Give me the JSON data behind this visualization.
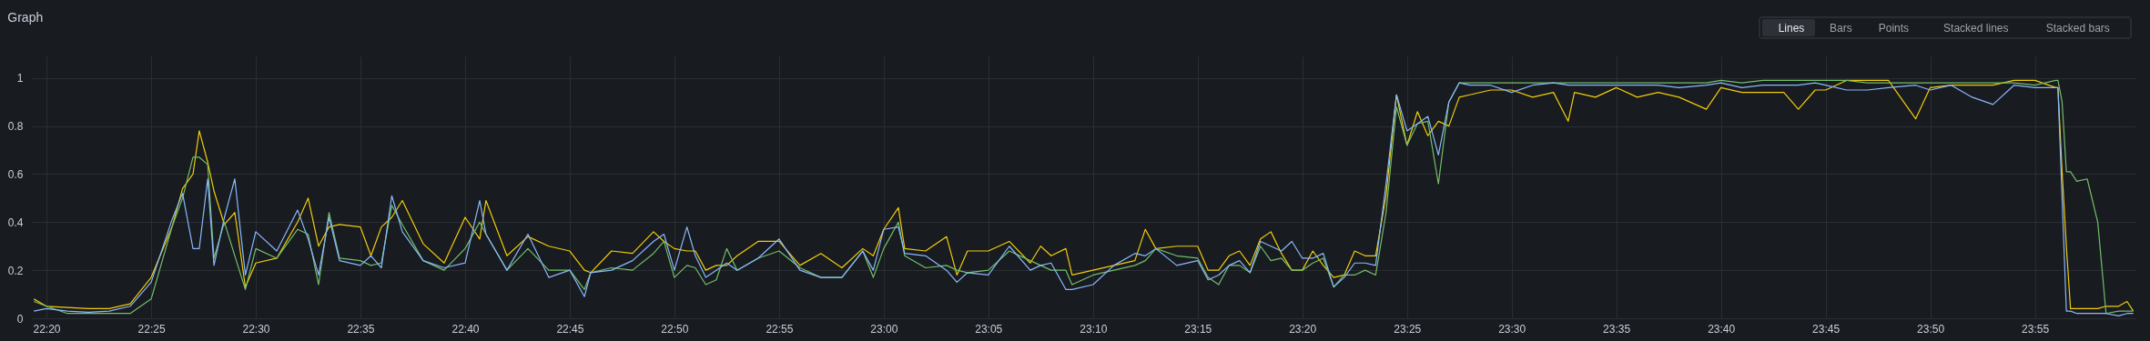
{
  "chart_data": {
    "type": "line",
    "title": "Graph",
    "annotations": [
      "Lines",
      "Bars",
      "Points",
      "Stacked lines",
      "Stacked bars"
    ],
    "x": [
      22.3233,
      22.3333,
      22.35,
      22.3667,
      22.3833,
      22.4,
      22.4167,
      22.4333,
      22.4417,
      22.45,
      22.455,
      22.4617,
      22.4667,
      22.475,
      22.4833,
      22.4917,
      22.5,
      22.5167,
      22.5333,
      22.5417,
      22.55,
      22.5583,
      22.5667,
      22.5833,
      22.5917,
      22.6,
      22.6083,
      22.6167,
      22.6333,
      22.65,
      22.6667,
      22.6783,
      22.6833,
      22.7,
      22.7167,
      22.7333,
      22.75,
      22.7617,
      22.7667,
      22.7833,
      22.8,
      22.8167,
      22.825,
      22.8333,
      22.8433,
      22.85,
      22.8583,
      22.8667,
      22.875,
      22.8833,
      22.9,
      22.9167,
      22.9333,
      22.95,
      22.9667,
      22.9833,
      22.9917,
      23,
      23.0117,
      23.0167,
      23.0333,
      23.05,
      23.0583,
      23.0667,
      23.0833,
      23.1,
      23.1167,
      23.125,
      23.1333,
      23.145,
      23.15,
      23.1667,
      23.1833,
      23.2,
      23.2083,
      23.2167,
      23.2333,
      23.25,
      23.2583,
      23.2667,
      23.275,
      23.2833,
      23.2917,
      23.3,
      23.3083,
      23.3167,
      23.325,
      23.3333,
      23.3417,
      23.35,
      23.3583,
      23.3667,
      23.375,
      23.3833,
      23.3917,
      23.4,
      23.4083,
      23.4167,
      23.425,
      23.4333,
      23.4417,
      23.45,
      23.4583,
      23.4667,
      23.4833,
      23.5,
      23.5167,
      23.5333,
      23.545,
      23.55,
      23.5667,
      23.5833,
      23.6,
      23.6167,
      23.6333,
      23.655,
      23.6667,
      23.6833,
      23.7,
      23.7167,
      23.7283,
      23.7417,
      23.75,
      23.7667,
      23.7833,
      23.8,
      23.8217,
      23.8333,
      23.85,
      23.8667,
      23.8833,
      23.9,
      23.9167,
      23.9333,
      23.935,
      23.9383,
      23.9417,
      23.945,
      23.95,
      23.9583,
      23.9667,
      23.9733,
      23.9833,
      23.99,
      23.995
    ],
    "series": [
      {
        "color": "#f2cc0c",
        "values": [
          0.08,
          0.05,
          0.045,
          0.04,
          0.04,
          0.06,
          0.17,
          0.38,
          0.54,
          0.6,
          0.78,
          0.65,
          0.53,
          0.39,
          0.44,
          0.13,
          0.23,
          0.25,
          0.4,
          0.5,
          0.3,
          0.38,
          0.39,
          0.38,
          0.26,
          0.38,
          0.42,
          0.49,
          0.31,
          0.23,
          0.42,
          0.33,
          0.49,
          0.26,
          0.34,
          0.3,
          0.28,
          0.2,
          0.19,
          0.28,
          0.27,
          0.36,
          0.32,
          0.29,
          0.28,
          0.28,
          0.2,
          0.22,
          0.22,
          0.26,
          0.32,
          0.32,
          0.22,
          0.27,
          0.21,
          0.29,
          0.26,
          0.37,
          0.46,
          0.29,
          0.28,
          0.34,
          0.18,
          0.28,
          0.28,
          0.32,
          0.23,
          0.3,
          0.26,
          0.29,
          0.18,
          0.2,
          0.22,
          0.24,
          0.37,
          0.29,
          0.3,
          0.3,
          0.2,
          0.2,
          0.26,
          0.28,
          0.22,
          0.33,
          0.36,
          0.27,
          0.2,
          0.2,
          0.28,
          0.22,
          0.17,
          0.18,
          0.28,
          0.26,
          0.26,
          0.51,
          0.93,
          0.72,
          0.86,
          0.76,
          0.82,
          0.8,
          0.92,
          0.93,
          0.95,
          0.95,
          0.92,
          0.94,
          0.82,
          0.94,
          0.92,
          0.96,
          0.92,
          0.94,
          0.92,
          0.87,
          0.96,
          0.94,
          0.94,
          0.94,
          0.87,
          0.95,
          0.95,
          0.99,
          0.99,
          0.99,
          0.83,
          0.96,
          0.97,
          0.97,
          0.97,
          0.99,
          0.99,
          0.96,
          0.96,
          0.61,
          0.3,
          0.04,
          0.04,
          0.04,
          0.04,
          0.05,
          0.05,
          0.07,
          0.03
        ]
      },
      {
        "color": "#73bf69",
        "values": [
          0.07,
          0.05,
          0.02,
          0.02,
          0.02,
          0.02,
          0.08,
          0.38,
          0.5,
          0.67,
          0.67,
          0.64,
          0.25,
          0.4,
          0.26,
          0.12,
          0.29,
          0.25,
          0.37,
          0.35,
          0.14,
          0.44,
          0.25,
          0.24,
          0.22,
          0.23,
          0.47,
          0.39,
          0.24,
          0.2,
          0.29,
          0.4,
          0.35,
          0.2,
          0.29,
          0.2,
          0.2,
          0.12,
          0.19,
          0.21,
          0.2,
          0.27,
          0.32,
          0.17,
          0.22,
          0.21,
          0.14,
          0.16,
          0.29,
          0.2,
          0.25,
          0.28,
          0.21,
          0.17,
          0.17,
          0.28,
          0.17,
          0.29,
          0.4,
          0.26,
          0.21,
          0.22,
          0.2,
          0.19,
          0.2,
          0.28,
          0.24,
          0.22,
          0.2,
          0.2,
          0.14,
          0.18,
          0.2,
          0.22,
          0.24,
          0.29,
          0.26,
          0.25,
          0.17,
          0.14,
          0.22,
          0.22,
          0.19,
          0.3,
          0.24,
          0.25,
          0.2,
          0.2,
          0.23,
          0.25,
          0.13,
          0.18,
          0.18,
          0.2,
          0.18,
          0.44,
          0.88,
          0.72,
          0.81,
          0.82,
          0.56,
          0.9,
          0.98,
          0.98,
          0.98,
          0.98,
          0.98,
          0.98,
          0.98,
          0.98,
          0.98,
          0.98,
          0.98,
          0.98,
          0.98,
          0.98,
          0.99,
          0.98,
          0.99,
          0.99,
          0.99,
          0.99,
          0.99,
          0.99,
          0.98,
          0.98,
          0.98,
          0.98,
          0.98,
          0.98,
          0.98,
          0.98,
          0.97,
          0.99,
          0.99,
          0.9,
          0.61,
          0.61,
          0.57,
          0.58,
          0.4,
          0.02,
          0.03,
          0.03,
          0.03
        ]
      },
      {
        "color": "#8ab8ff",
        "values": [
          0.03,
          0.04,
          0.03,
          0.025,
          0.03,
          0.05,
          0.15,
          0.41,
          0.52,
          0.29,
          0.29,
          0.58,
          0.22,
          0.42,
          0.58,
          0.18,
          0.36,
          0.28,
          0.45,
          0.33,
          0.18,
          0.42,
          0.24,
          0.22,
          0.26,
          0.21,
          0.51,
          0.36,
          0.24,
          0.21,
          0.23,
          0.49,
          0.35,
          0.2,
          0.35,
          0.17,
          0.2,
          0.09,
          0.19,
          0.2,
          0.24,
          0.32,
          0.35,
          0.2,
          0.38,
          0.26,
          0.17,
          0.2,
          0.23,
          0.2,
          0.25,
          0.33,
          0.2,
          0.17,
          0.17,
          0.28,
          0.2,
          0.37,
          0.38,
          0.27,
          0.26,
          0.2,
          0.15,
          0.19,
          0.18,
          0.3,
          0.2,
          0.22,
          0.23,
          0.12,
          0.12,
          0.14,
          0.22,
          0.27,
          0.26,
          0.29,
          0.22,
          0.24,
          0.16,
          0.18,
          0.22,
          0.24,
          0.19,
          0.32,
          0.3,
          0.28,
          0.32,
          0.25,
          0.25,
          0.27,
          0.13,
          0.17,
          0.23,
          0.23,
          0.22,
          0.56,
          0.93,
          0.78,
          0.81,
          0.84,
          0.68,
          0.9,
          0.98,
          0.97,
          0.97,
          0.94,
          0.97,
          0.98,
          0.97,
          0.97,
          0.97,
          0.97,
          0.97,
          0.97,
          0.96,
          0.97,
          0.98,
          0.96,
          0.97,
          0.97,
          0.97,
          0.98,
          0.97,
          0.95,
          0.95,
          0.96,
          0.97,
          0.95,
          0.97,
          0.92,
          0.89,
          0.97,
          0.96,
          0.96,
          0.96,
          0.5,
          0.03,
          0.03,
          0.02,
          0.02,
          0.02,
          0.02,
          0.01,
          0.02,
          0.02
        ]
      }
    ],
    "xlim": [
      22.3217,
      23.9967
    ],
    "xticks": [
      {
        "value": 22.3333,
        "label": "22:20"
      },
      {
        "value": 22.4167,
        "label": "22:25"
      },
      {
        "value": 22.5,
        "label": "22:30"
      },
      {
        "value": 22.5833,
        "label": "22:35"
      },
      {
        "value": 22.6667,
        "label": "22:40"
      },
      {
        "value": 22.75,
        "label": "22:45"
      },
      {
        "value": 22.8333,
        "label": "22:50"
      },
      {
        "value": 22.9167,
        "label": "22:55"
      },
      {
        "value": 23,
        "label": "23:00"
      },
      {
        "value": 23.0833,
        "label": "23:05"
      },
      {
        "value": 23.1667,
        "label": "23:10"
      },
      {
        "value": 23.25,
        "label": "23:15"
      },
      {
        "value": 23.3333,
        "label": "23:20"
      },
      {
        "value": 23.4167,
        "label": "23:25"
      },
      {
        "value": 23.5,
        "label": "23:30"
      },
      {
        "value": 23.5833,
        "label": "23:35"
      },
      {
        "value": 23.6667,
        "label": "23:40"
      },
      {
        "value": 23.75,
        "label": "23:45"
      },
      {
        "value": 23.8333,
        "label": "23:50"
      },
      {
        "value": 23.9167,
        "label": "23:55"
      }
    ],
    "ylim": [
      0,
      1.09
    ],
    "yticks": [
      0,
      0.2,
      0.4,
      0.6,
      0.8,
      1
    ],
    "grid": true,
    "legend": false,
    "marker": "none",
    "line_style": "solid"
  }
}
